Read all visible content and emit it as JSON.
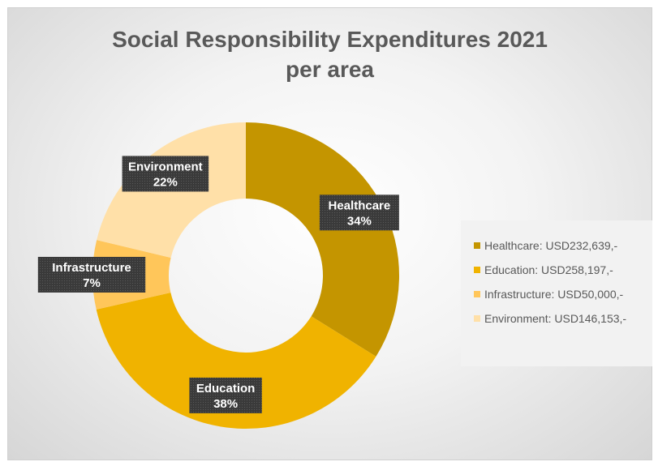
{
  "chart_data": {
    "type": "pie",
    "variant": "donut",
    "title": "Social Responsibility Expenditures 2021 per area",
    "title_lines": [
      "Social Responsibility Expenditures 2021",
      "per area"
    ],
    "categories": [
      "Healthcare",
      "Education",
      "Infrastructure",
      "Environment"
    ],
    "values": [
      232639,
      258197,
      50000,
      146153
    ],
    "percent_labels": [
      "34%",
      "38%",
      "7%",
      "22%"
    ],
    "legend": [
      "Healthcare: USD232,639,-",
      "Education: USD258,197,-",
      "Infrastructure: USD50,000,-",
      "Environment: USD146,153,-"
    ],
    "legend_position": "right",
    "colors": [
      "#C49500",
      "#F0B300",
      "#FFC65A",
      "#FFE0A8"
    ],
    "label_box_color": "#404040"
  }
}
